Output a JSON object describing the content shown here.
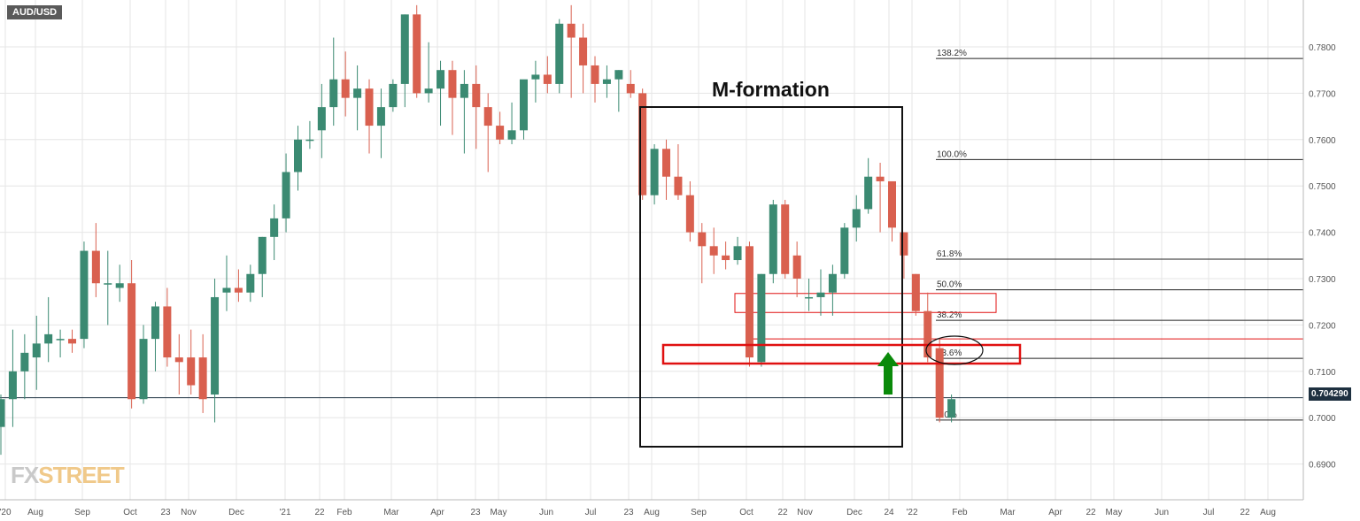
{
  "symbol": "AUD/USD",
  "watermark": {
    "fx": "FX",
    "street": "STREET"
  },
  "annotation": "M-formation",
  "current_price_label": "0.704290",
  "colors": {
    "up": "#3b8a72",
    "down": "#d9604f",
    "annotation_red": "#e01010",
    "arrow": "#0a8a0a",
    "grid": "#e6e6e6"
  },
  "chart_data": {
    "type": "candlestick",
    "title": "",
    "xlabel": "",
    "ylabel": "",
    "ylim": [
      0.6855,
      0.7895
    ],
    "y_ticks": [
      "0.6900",
      "0.7000",
      "0.7100",
      "0.7200",
      "0.7300",
      "0.7400",
      "0.7500",
      "0.7600",
      "0.7700",
      "0.7800"
    ],
    "x_ticks": [
      "'20",
      "Aug",
      "Sep",
      "Oct",
      "23",
      "Nov",
      "Dec",
      "'21",
      "22",
      "Feb",
      "Mar",
      "Apr",
      "23",
      "May",
      "Jun",
      "Jul",
      "23",
      "Aug",
      "Sep",
      "Oct",
      "22",
      "Nov",
      "Dec",
      "24",
      "'22",
      "Feb",
      "Mar",
      "Apr",
      "22",
      "May",
      "Jun",
      "Jul",
      "22",
      "Aug"
    ],
    "candles": [
      [
        0.698,
        0.705,
        0.692,
        0.704
      ],
      [
        0.704,
        0.719,
        0.698,
        0.71
      ],
      [
        0.71,
        0.718,
        0.704,
        0.714
      ],
      [
        0.713,
        0.722,
        0.706,
        0.716
      ],
      [
        0.716,
        0.726,
        0.712,
        0.718
      ],
      [
        0.717,
        0.719,
        0.713,
        0.717
      ],
      [
        0.717,
        0.719,
        0.714,
        0.716
      ],
      [
        0.717,
        0.738,
        0.715,
        0.736
      ],
      [
        0.736,
        0.742,
        0.726,
        0.729
      ],
      [
        0.729,
        0.736,
        0.72,
        0.729
      ],
      [
        0.728,
        0.733,
        0.725,
        0.729
      ],
      [
        0.729,
        0.734,
        0.702,
        0.704
      ],
      [
        0.704,
        0.72,
        0.703,
        0.717
      ],
      [
        0.717,
        0.725,
        0.71,
        0.724
      ],
      [
        0.724,
        0.728,
        0.711,
        0.713
      ],
      [
        0.713,
        0.718,
        0.705,
        0.712
      ],
      [
        0.713,
        0.719,
        0.705,
        0.707
      ],
      [
        0.713,
        0.718,
        0.701,
        0.704
      ],
      [
        0.705,
        0.73,
        0.699,
        0.726
      ],
      [
        0.727,
        0.735,
        0.723,
        0.728
      ],
      [
        0.728,
        0.732,
        0.725,
        0.727
      ],
      [
        0.727,
        0.733,
        0.725,
        0.731
      ],
      [
        0.731,
        0.739,
        0.726,
        0.739
      ],
      [
        0.739,
        0.746,
        0.734,
        0.743
      ],
      [
        0.743,
        0.757,
        0.74,
        0.753
      ],
      [
        0.753,
        0.763,
        0.749,
        0.76
      ],
      [
        0.76,
        0.764,
        0.758,
        0.76
      ],
      [
        0.762,
        0.772,
        0.756,
        0.767
      ],
      [
        0.767,
        0.782,
        0.763,
        0.773
      ],
      [
        0.773,
        0.779,
        0.765,
        0.769
      ],
      [
        0.769,
        0.776,
        0.762,
        0.771
      ],
      [
        0.771,
        0.773,
        0.757,
        0.763
      ],
      [
        0.763,
        0.771,
        0.756,
        0.767
      ],
      [
        0.767,
        0.773,
        0.766,
        0.772
      ],
      [
        0.772,
        0.787,
        0.767,
        0.787
      ],
      [
        0.787,
        0.789,
        0.769,
        0.77
      ],
      [
        0.77,
        0.781,
        0.768,
        0.771
      ],
      [
        0.771,
        0.777,
        0.763,
        0.775
      ],
      [
        0.775,
        0.777,
        0.761,
        0.769
      ],
      [
        0.769,
        0.775,
        0.757,
        0.772
      ],
      [
        0.772,
        0.776,
        0.758,
        0.767
      ],
      [
        0.767,
        0.77,
        0.753,
        0.763
      ],
      [
        0.763,
        0.766,
        0.759,
        0.76
      ],
      [
        0.76,
        0.768,
        0.759,
        0.762
      ],
      [
        0.762,
        0.772,
        0.76,
        0.773
      ],
      [
        0.773,
        0.777,
        0.768,
        0.774
      ],
      [
        0.774,
        0.778,
        0.77,
        0.772
      ],
      [
        0.772,
        0.786,
        0.77,
        0.785
      ],
      [
        0.785,
        0.789,
        0.769,
        0.782
      ],
      [
        0.782,
        0.785,
        0.77,
        0.776
      ],
      [
        0.776,
        0.778,
        0.768,
        0.772
      ],
      [
        0.772,
        0.776,
        0.769,
        0.773
      ],
      [
        0.773,
        0.775,
        0.766,
        0.775
      ],
      [
        0.772,
        0.775,
        0.769,
        0.77
      ],
      [
        0.77,
        0.771,
        0.747,
        0.748
      ],
      [
        0.748,
        0.759,
        0.746,
        0.758
      ],
      [
        0.758,
        0.76,
        0.747,
        0.752
      ],
      [
        0.752,
        0.759,
        0.747,
        0.748
      ],
      [
        0.748,
        0.751,
        0.738,
        0.74
      ],
      [
        0.74,
        0.742,
        0.729,
        0.737
      ],
      [
        0.737,
        0.741,
        0.731,
        0.735
      ],
      [
        0.735,
        0.738,
        0.732,
        0.734
      ],
      [
        0.734,
        0.739,
        0.733,
        0.737
      ],
      [
        0.737,
        0.738,
        0.711,
        0.713
      ],
      [
        0.712,
        0.731,
        0.711,
        0.731
      ],
      [
        0.731,
        0.747,
        0.729,
        0.746
      ],
      [
        0.746,
        0.747,
        0.73,
        0.731
      ],
      [
        0.735,
        0.738,
        0.726,
        0.73
      ],
      [
        0.726,
        0.73,
        0.723,
        0.726
      ],
      [
        0.726,
        0.732,
        0.722,
        0.727
      ],
      [
        0.727,
        0.733,
        0.722,
        0.731
      ],
      [
        0.731,
        0.742,
        0.73,
        0.741
      ],
      [
        0.741,
        0.748,
        0.738,
        0.745
      ],
      [
        0.745,
        0.756,
        0.744,
        0.752
      ],
      [
        0.752,
        0.755,
        0.74,
        0.751
      ],
      [
        0.751,
        0.751,
        0.738,
        0.741
      ],
      [
        0.74,
        0.74,
        0.73,
        0.735
      ],
      [
        0.731,
        0.731,
        0.722,
        0.723
      ],
      [
        0.723,
        0.727,
        0.712,
        0.713
      ],
      [
        0.715,
        0.717,
        0.699,
        0.7
      ],
      [
        0.7,
        0.705,
        0.699,
        0.704
      ]
    ],
    "horizontal_lines": [
      {
        "price": 0.7043,
        "label": "0.704290"
      }
    ],
    "fibonacci": [
      {
        "level": "138.2%",
        "price": 0.7775
      },
      {
        "level": "100.0%",
        "price": 0.7557
      },
      {
        "level": "61.8%",
        "price": 0.7342
      },
      {
        "level": "50.0%",
        "price": 0.7276
      },
      {
        "level": "38.2%",
        "price": 0.721
      },
      {
        "level": "23.6%",
        "price": 0.7128
      },
      {
        "level": "0.0%",
        "price": 0.6995
      }
    ],
    "legend": "none",
    "grid": true
  }
}
